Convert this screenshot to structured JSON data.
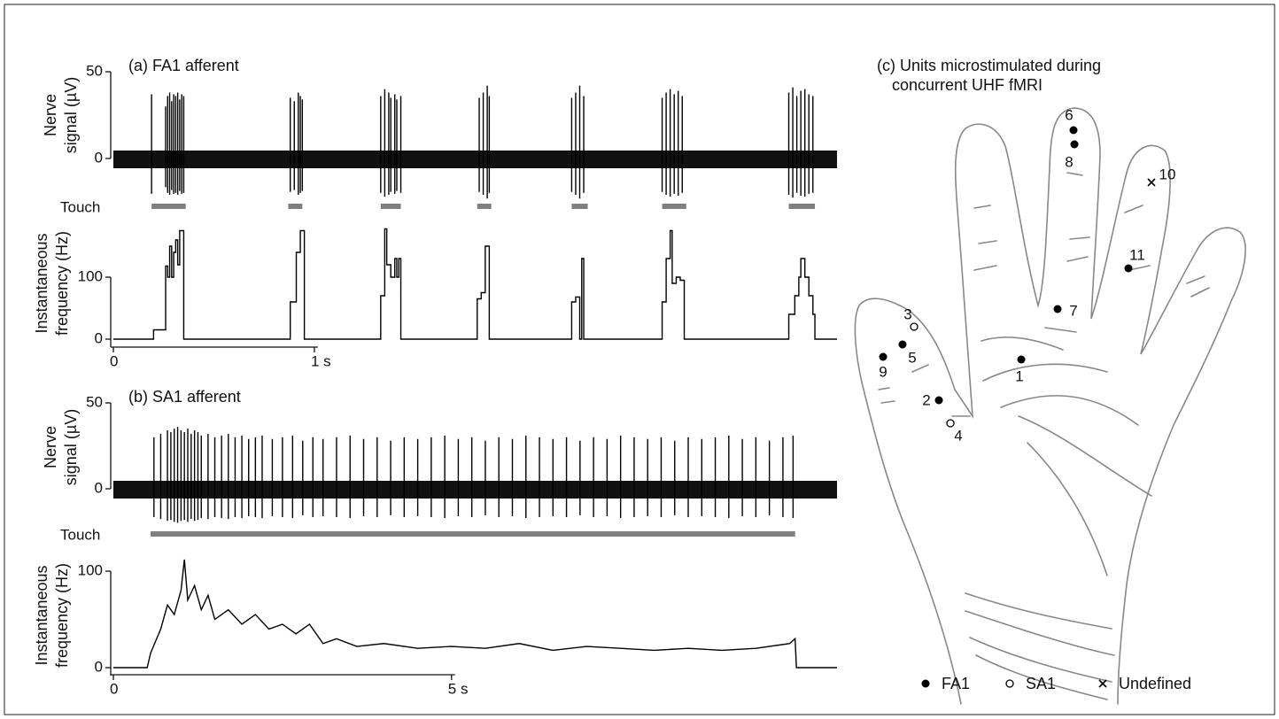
{
  "chart_data": [
    {
      "type": "trace",
      "title": "(a) FA1 afferent",
      "ylabel": [
        "Nerve",
        "signal (µV)"
      ],
      "xlim": [
        0,
        3.6
      ],
      "ylim": [
        -25,
        50
      ],
      "yticks": [
        0,
        50
      ],
      "x": [
        0.19,
        0.26,
        0.27,
        0.28,
        0.29,
        0.3,
        0.31,
        0.32,
        0.33,
        0.34,
        0.35,
        0.88,
        0.9,
        0.92,
        0.93,
        0.94,
        1.33,
        1.35,
        1.37,
        1.38,
        1.4,
        1.41,
        1.43,
        1.82,
        1.84,
        1.86,
        1.87,
        2.28,
        2.3,
        2.32,
        2.34,
        2.73,
        2.75,
        2.77,
        2.79,
        2.81,
        2.83,
        3.36,
        3.38,
        3.4,
        3.42,
        3.44,
        3.46,
        3.48
      ],
      "values": [
        37,
        30,
        36,
        38,
        33,
        37,
        36,
        38,
        34,
        37,
        36,
        35,
        33,
        38,
        36,
        34,
        36,
        40,
        38,
        35,
        37,
        34,
        36,
        35,
        38,
        42,
        36,
        35,
        38,
        42,
        36,
        35,
        38,
        40,
        37,
        39,
        36,
        38,
        41,
        36,
        39,
        40,
        37,
        36
      ],
      "touch": {
        "label": "Touch",
        "intervals": [
          [
            0.19,
            0.36
          ],
          [
            0.87,
            0.94
          ],
          [
            1.33,
            1.43
          ],
          [
            1.81,
            1.88
          ],
          [
            2.28,
            2.36
          ],
          [
            2.73,
            2.85
          ],
          [
            3.36,
            3.49
          ]
        ]
      }
    },
    {
      "type": "line",
      "ylabel": [
        "Instantaneous",
        "frequency (Hz)"
      ],
      "xlim": [
        0,
        3.6
      ],
      "ylim": [
        0,
        180
      ],
      "yticks": [
        0,
        100
      ],
      "xticks": [
        0,
        {
          "value": 1,
          "label": "1 s"
        }
      ],
      "x": [
        0,
        0.2,
        0.2,
        0.26,
        0.26,
        0.27,
        0.27,
        0.28,
        0.28,
        0.29,
        0.29,
        0.3,
        0.3,
        0.31,
        0.31,
        0.32,
        0.32,
        0.33,
        0.33,
        0.35,
        0.35,
        0.88,
        0.88,
        0.91,
        0.91,
        0.93,
        0.93,
        0.95,
        0.95,
        1.33,
        1.33,
        1.35,
        1.35,
        1.36,
        1.36,
        1.38,
        1.38,
        1.4,
        1.4,
        1.41,
        1.41,
        1.42,
        1.42,
        1.43,
        1.43,
        1.81,
        1.81,
        1.83,
        1.83,
        1.85,
        1.85,
        1.87,
        1.87,
        2.28,
        2.28,
        2.3,
        2.3,
        2.32,
        2.32,
        2.33,
        2.33,
        2.34,
        2.34,
        2.73,
        2.73,
        2.75,
        2.75,
        2.77,
        2.77,
        2.78,
        2.78,
        2.8,
        2.8,
        2.82,
        2.82,
        2.84,
        2.84,
        3.36,
        3.36,
        3.39,
        3.39,
        3.41,
        3.41,
        3.42,
        3.42,
        3.44,
        3.44,
        3.46,
        3.46,
        3.48,
        3.48,
        3.49,
        3.49,
        3.6
      ],
      "values": [
        0,
        0,
        15,
        15,
        118,
        118,
        100,
        100,
        150,
        150,
        100,
        100,
        140,
        140,
        160,
        160,
        120,
        120,
        175,
        175,
        0,
        0,
        60,
        60,
        140,
        140,
        175,
        175,
        0,
        0,
        70,
        70,
        178,
        178,
        120,
        120,
        100,
        100,
        130,
        130,
        100,
        100,
        130,
        130,
        0,
        0,
        65,
        65,
        75,
        75,
        150,
        150,
        0,
        0,
        60,
        60,
        68,
        68,
        0,
        0,
        130,
        130,
        0,
        0,
        60,
        60,
        130,
        130,
        175,
        175,
        90,
        90,
        100,
        100,
        95,
        95,
        0,
        0,
        40,
        40,
        70,
        70,
        100,
        100,
        130,
        130,
        100,
        100,
        70,
        70,
        40,
        40,
        0,
        0
      ]
    },
    {
      "type": "trace",
      "title": "(b) SA1 afferent",
      "ylabel": [
        "Nerve",
        "signal (µV)"
      ],
      "xlim": [
        0,
        10.7
      ],
      "ylim": [
        -25,
        50
      ],
      "yticks": [
        0,
        50
      ],
      "x": [
        0.6,
        0.7,
        0.8,
        0.85,
        0.9,
        0.95,
        1.0,
        1.05,
        1.1,
        1.15,
        1.2,
        1.25,
        1.3,
        1.4,
        1.5,
        1.6,
        1.7,
        1.8,
        1.9,
        2.0,
        2.1,
        2.2,
        2.35,
        2.5,
        2.65,
        2.8,
        2.95,
        3.1,
        3.3,
        3.5,
        3.7,
        3.9,
        4.1,
        4.3,
        4.5,
        4.7,
        4.9,
        5.1,
        5.3,
        5.5,
        5.7,
        5.9,
        6.1,
        6.3,
        6.5,
        6.7,
        6.9,
        7.1,
        7.3,
        7.5,
        7.7,
        7.9,
        8.1,
        8.3,
        8.5,
        8.7,
        8.9,
        9.1,
        9.3,
        9.5,
        9.7,
        9.9,
        10.05
      ],
      "values": [
        30,
        32,
        34,
        33,
        35,
        36,
        34,
        33,
        35,
        32,
        34,
        33,
        31,
        32,
        30,
        31,
        32,
        30,
        31,
        29,
        30,
        31,
        29,
        30,
        31,
        28,
        30,
        29,
        30,
        31,
        29,
        30,
        28,
        30,
        29,
        30,
        31,
        29,
        30,
        28,
        30,
        29,
        31,
        30,
        29,
        30,
        28,
        30,
        29,
        31,
        30,
        29,
        30,
        28,
        30,
        29,
        30,
        31,
        29,
        30,
        28,
        30,
        31
      ],
      "touch": {
        "label": "Touch",
        "intervals": [
          [
            0.55,
            10.08
          ]
        ]
      }
    },
    {
      "type": "line",
      "ylabel": [
        "Instantaneous",
        "frequency (Hz)"
      ],
      "xlim": [
        0,
        10.7
      ],
      "ylim": [
        0,
        115
      ],
      "yticks": [
        0,
        100
      ],
      "xticks": [
        0,
        {
          "value": 5,
          "label": "5 s"
        }
      ],
      "x": [
        0,
        0.5,
        0.55,
        0.7,
        0.8,
        0.9,
        1.0,
        1.05,
        1.1,
        1.2,
        1.3,
        1.4,
        1.5,
        1.7,
        1.9,
        2.1,
        2.3,
        2.5,
        2.7,
        2.9,
        3.1,
        3.3,
        3.6,
        4.0,
        4.5,
        5.0,
        5.5,
        6.0,
        6.5,
        7.0,
        7.5,
        8.0,
        8.5,
        9.0,
        9.5,
        10.0,
        10.08,
        10.1,
        10.7
      ],
      "values": [
        0,
        0,
        15,
        40,
        65,
        55,
        80,
        112,
        70,
        85,
        60,
        75,
        50,
        60,
        45,
        55,
        40,
        45,
        35,
        45,
        25,
        30,
        22,
        25,
        20,
        22,
        20,
        25,
        18,
        22,
        20,
        18,
        20,
        18,
        20,
        25,
        30,
        0,
        0
      ]
    }
  ],
  "hand_map": {
    "title_lines": [
      "(c) Units microstimulated during",
      "concurrent UHF fMRI"
    ],
    "units": [
      {
        "label": "1",
        "type": "FA1"
      },
      {
        "label": "2",
        "type": "FA1"
      },
      {
        "label": "3",
        "type": "SA1"
      },
      {
        "label": "4",
        "type": "SA1"
      },
      {
        "label": "5",
        "type": "FA1"
      },
      {
        "label": "6",
        "type": "FA1"
      },
      {
        "label": "7",
        "type": "FA1"
      },
      {
        "label": "8",
        "type": "FA1"
      },
      {
        "label": "9",
        "type": "FA1"
      },
      {
        "label": "10",
        "type": "Undefined"
      },
      {
        "label": "11",
        "type": "FA1"
      }
    ],
    "legend": [
      {
        "label": "FA1",
        "type": "FA1"
      },
      {
        "label": "SA1",
        "type": "SA1"
      },
      {
        "label": "Undefined",
        "type": "Undefined"
      }
    ]
  }
}
